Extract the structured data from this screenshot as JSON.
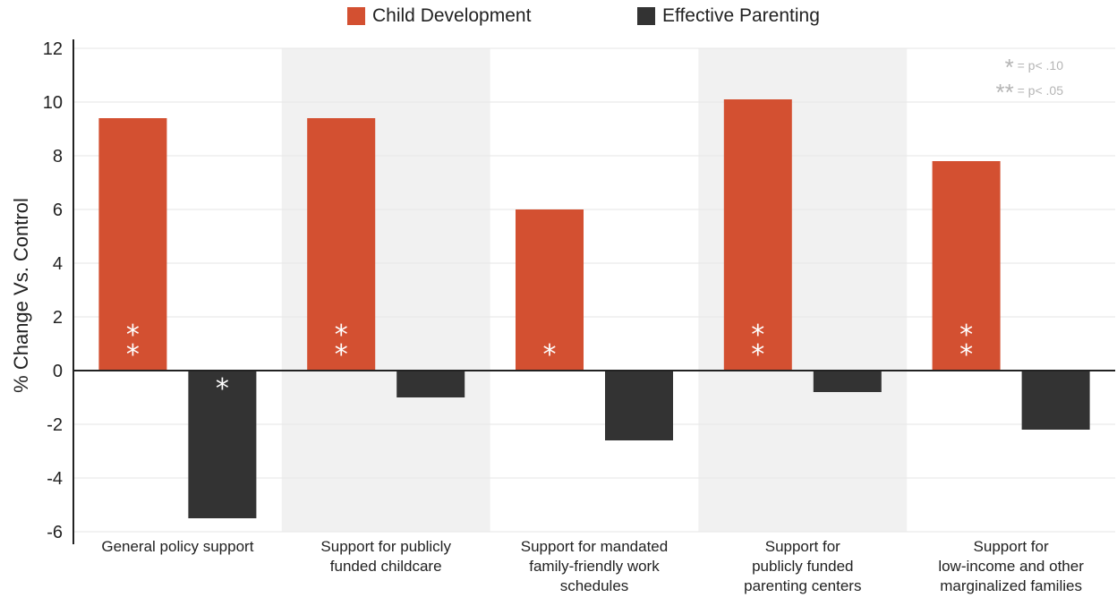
{
  "legend": {
    "child_label": "Child Development",
    "parent_label": "Effective Parenting"
  },
  "colors": {
    "child": "#d35031",
    "parent": "#333333",
    "band": "#f1f1f1",
    "grid": "#e6e6e6",
    "sig_key": "#b5b5b5"
  },
  "sig_key": {
    "p10_stars": "*",
    "p10_text": "= p< .10",
    "p05_stars": "**",
    "p05_text": "= p< .05"
  },
  "categories": [
    "General policy support",
    "Support for publicly funded childcare",
    "Support for mandated family-friendly work schedules",
    "Support for publicly funded parenting centers",
    "Support for low-income and other marginalized families"
  ],
  "chart_data": {
    "type": "bar",
    "ylabel": "% Change Vs. Control",
    "ylim": [
      -6,
      12
    ],
    "yticks": [
      "12",
      "10",
      "8",
      "6",
      "4",
      "2",
      "0",
      "-2",
      "-4",
      "-6"
    ],
    "categories": [
      [
        "General policy support"
      ],
      [
        "Support for publicly",
        "funded childcare"
      ],
      [
        "Support for mandated",
        "family-friendly work",
        "schedules"
      ],
      [
        "Support for",
        "publicly funded",
        "parenting centers"
      ],
      [
        "Support for",
        "low-income and other",
        "marginalized families"
      ]
    ],
    "series": [
      {
        "name": "Child Development",
        "values": [
          9.4,
          9.4,
          6.0,
          10.1,
          7.8
        ],
        "significance": [
          "**",
          "**",
          "*",
          "**",
          "**"
        ]
      },
      {
        "name": "Effective Parenting",
        "values": [
          -5.5,
          -1.0,
          -2.6,
          -0.8,
          -2.2
        ],
        "significance": [
          "*",
          "",
          "",
          "",
          ""
        ]
      }
    ],
    "grid": true,
    "shaded_categories": [
      1,
      3
    ]
  }
}
